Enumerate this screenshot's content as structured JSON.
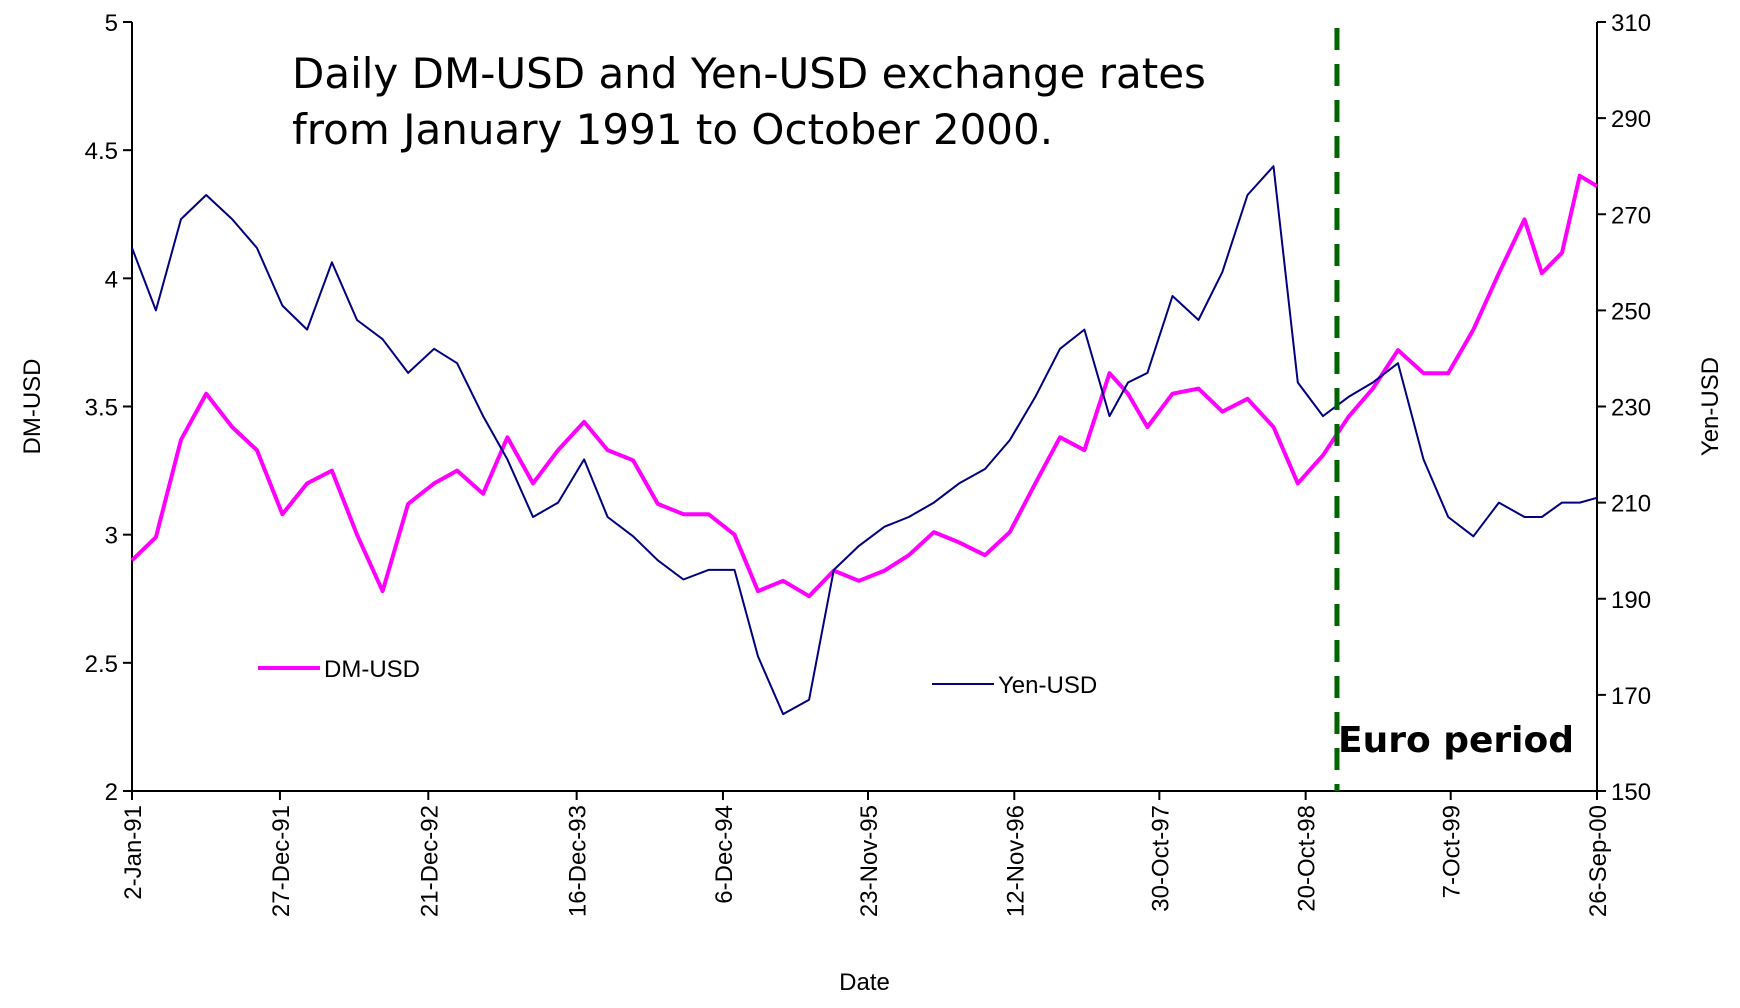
{
  "chart_data": {
    "type": "line",
    "title": "Daily DM-USD and Yen-USD exchange rates from January 1991 to October 2000.",
    "xlabel": "Date",
    "ylabel": "DM-USD",
    "y2label": "Yen-USD",
    "x": [
      "1991-01-02",
      "1991-03-01",
      "1991-05-01",
      "1991-07-01",
      "1991-09-02",
      "1991-11-01",
      "1992-01-02",
      "1992-03-02",
      "1992-05-01",
      "1992-07-01",
      "1992-09-01",
      "1992-11-02",
      "1993-01-04",
      "1993-03-01",
      "1993-05-03",
      "1993-07-01",
      "1993-09-01",
      "1993-11-01",
      "1994-01-03",
      "1994-03-01",
      "1994-05-02",
      "1994-07-01",
      "1994-09-01",
      "1994-11-01",
      "1995-01-03",
      "1995-03-01",
      "1995-05-01",
      "1995-07-03",
      "1995-09-01",
      "1995-11-01",
      "1996-01-02",
      "1996-03-01",
      "1996-05-01",
      "1996-07-01",
      "1996-09-02",
      "1996-11-01",
      "1997-01-02",
      "1997-03-03",
      "1997-05-01",
      "1997-07-01",
      "1997-08-15",
      "1997-10-01",
      "1997-12-01",
      "1998-02-02",
      "1998-04-01",
      "1998-06-01",
      "1998-08-03",
      "1998-10-01",
      "1998-12-01",
      "1999-02-01",
      "1999-04-01",
      "1999-06-01",
      "1999-08-02",
      "1999-10-01",
      "1999-12-01",
      "2000-02-01",
      "2000-04-03",
      "2000-05-15",
      "2000-07-03",
      "2000-08-15",
      "2000-09-26"
    ],
    "series": [
      {
        "name": "DM-USD",
        "color": "#ff00ff",
        "axis": "y",
        "values": [
          2.9,
          2.99,
          3.37,
          3.55,
          3.42,
          3.33,
          3.08,
          3.2,
          3.25,
          3.0,
          2.78,
          3.12,
          3.2,
          3.25,
          3.16,
          3.38,
          3.2,
          3.33,
          3.44,
          3.33,
          3.29,
          3.12,
          3.08,
          3.08,
          3.0,
          2.78,
          2.82,
          2.76,
          2.86,
          2.82,
          2.86,
          2.92,
          3.01,
          2.97,
          2.92,
          3.01,
          3.2,
          3.38,
          3.33,
          3.63,
          3.55,
          3.42,
          3.55,
          3.57,
          3.48,
          3.53,
          3.42,
          3.2,
          3.31,
          3.46,
          3.57,
          3.72,
          3.63,
          3.63,
          3.8,
          4.02,
          4.23,
          4.02,
          4.1,
          4.4,
          4.36
        ]
      },
      {
        "name": "Yen-USD",
        "color": "#000080",
        "axis": "y2",
        "values": [
          263,
          250,
          269,
          274,
          269,
          263,
          251,
          246,
          260,
          248,
          244,
          237,
          242,
          239,
          228,
          219,
          207,
          210,
          219,
          207,
          203,
          198,
          194,
          196,
          196,
          178,
          166,
          169,
          196,
          201,
          205,
          207,
          210,
          214,
          217,
          223,
          232,
          242,
          246,
          228,
          235,
          237,
          253,
          248,
          258,
          274,
          280,
          235,
          228,
          232,
          235,
          239,
          219,
          207,
          203,
          210,
          207,
          207,
          210,
          210,
          211
        ]
      }
    ],
    "xlim": [
      "1991-01-02",
      "2000-09-26"
    ],
    "xticks": [
      {
        "value": "1991-01-02",
        "label": "2-Jan-91"
      },
      {
        "value": "1991-12-27",
        "label": "27-Dec-91"
      },
      {
        "value": "1992-12-21",
        "label": "21-Dec-92"
      },
      {
        "value": "1993-12-16",
        "label": "16-Dec-93"
      },
      {
        "value": "1994-12-06",
        "label": "6-Dec-94"
      },
      {
        "value": "1995-11-23",
        "label": "23-Nov-95"
      },
      {
        "value": "1996-11-12",
        "label": "12-Nov-96"
      },
      {
        "value": "1997-10-30",
        "label": "30-Oct-97"
      },
      {
        "value": "1998-10-20",
        "label": "20-Oct-98"
      },
      {
        "value": "1999-10-07",
        "label": "7-Oct-99"
      },
      {
        "value": "2000-09-26",
        "label": "26-Sep-00"
      }
    ],
    "ylim": [
      2,
      5
    ],
    "yticks": [
      2,
      2.5,
      3,
      3.5,
      4,
      4.5,
      5
    ],
    "y2lim": [
      150,
      310
    ],
    "y2ticks": [
      150,
      170,
      190,
      210,
      230,
      250,
      270,
      290,
      310
    ],
    "grid": false,
    "vline": {
      "x": "1999-01-04",
      "color": "#006400",
      "label": "Euro period"
    }
  }
}
